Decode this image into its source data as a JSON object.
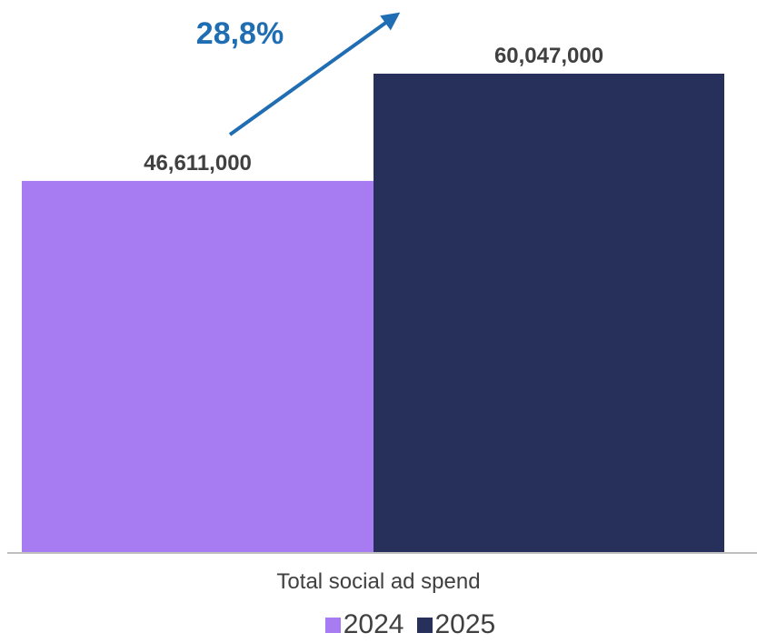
{
  "chart_data": {
    "type": "bar",
    "title": "",
    "categories": [
      "Total social ad spend"
    ],
    "series": [
      {
        "name": "2024",
        "values": [
          46611000
        ],
        "value_label": "46,611,000",
        "color": "#a77cf3"
      },
      {
        "name": "2025",
        "values": [
          60047000
        ],
        "value_label": "60,047,000",
        "color": "#26305a"
      }
    ],
    "annotation": {
      "text": "28,8%",
      "color": "#1f6db3"
    },
    "xlabel": "",
    "ylabel": "",
    "ylim": [
      0,
      60047000
    ],
    "grid": false,
    "legend_position": "bottom"
  }
}
